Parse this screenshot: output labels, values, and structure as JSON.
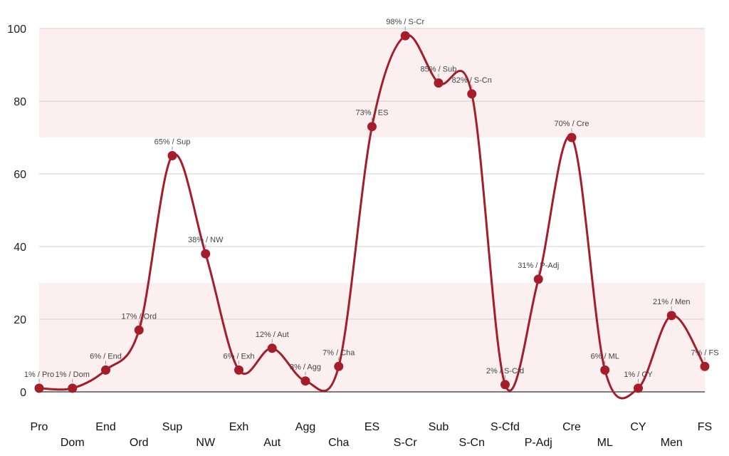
{
  "chart_data": {
    "type": "line",
    "title": "",
    "xlabel": "",
    "ylabel": "",
    "ylim": [
      0,
      100
    ],
    "yticks": [
      0,
      20,
      40,
      60,
      80,
      100
    ],
    "grid": true,
    "smooth": true,
    "colors": {
      "line": "#a51c2a",
      "band": "#fcefef",
      "grid": "#cfcfcf"
    },
    "bands": [
      {
        "from": 0,
        "to": 30
      },
      {
        "from": 70,
        "to": 100
      }
    ],
    "categories": [
      "Pro",
      "Dom",
      "End",
      "Ord",
      "Sup",
      "NW",
      "Exh",
      "Aut",
      "Agg",
      "Cha",
      "ES",
      "S-Cr",
      "Sub",
      "S-Cn",
      "S-Cfd",
      "P-Adj",
      "Cre",
      "ML",
      "CY",
      "Men",
      "FS"
    ],
    "values": [
      1,
      1,
      6,
      17,
      65,
      38,
      6,
      12,
      3,
      7,
      73,
      98,
      85,
      82,
      2,
      31,
      70,
      6,
      1,
      21,
      7
    ],
    "data_labels": [
      "1% / Pro",
      "1% / Dom",
      "6% / End",
      "17% / Ord",
      "65% / Sup",
      "38% / NW",
      "6% / Exh",
      "12% / Aut",
      "3% / Agg",
      "7% / Cha",
      "73% / ES",
      "98% / S-Cr",
      "85% / Sub",
      "82% / S-Cn",
      "2% / S-Cfd",
      "31% / P-Adj",
      "70% / Cre",
      "6% / ML",
      "1% / CY",
      "21% / Men",
      "7% / FS"
    ]
  }
}
